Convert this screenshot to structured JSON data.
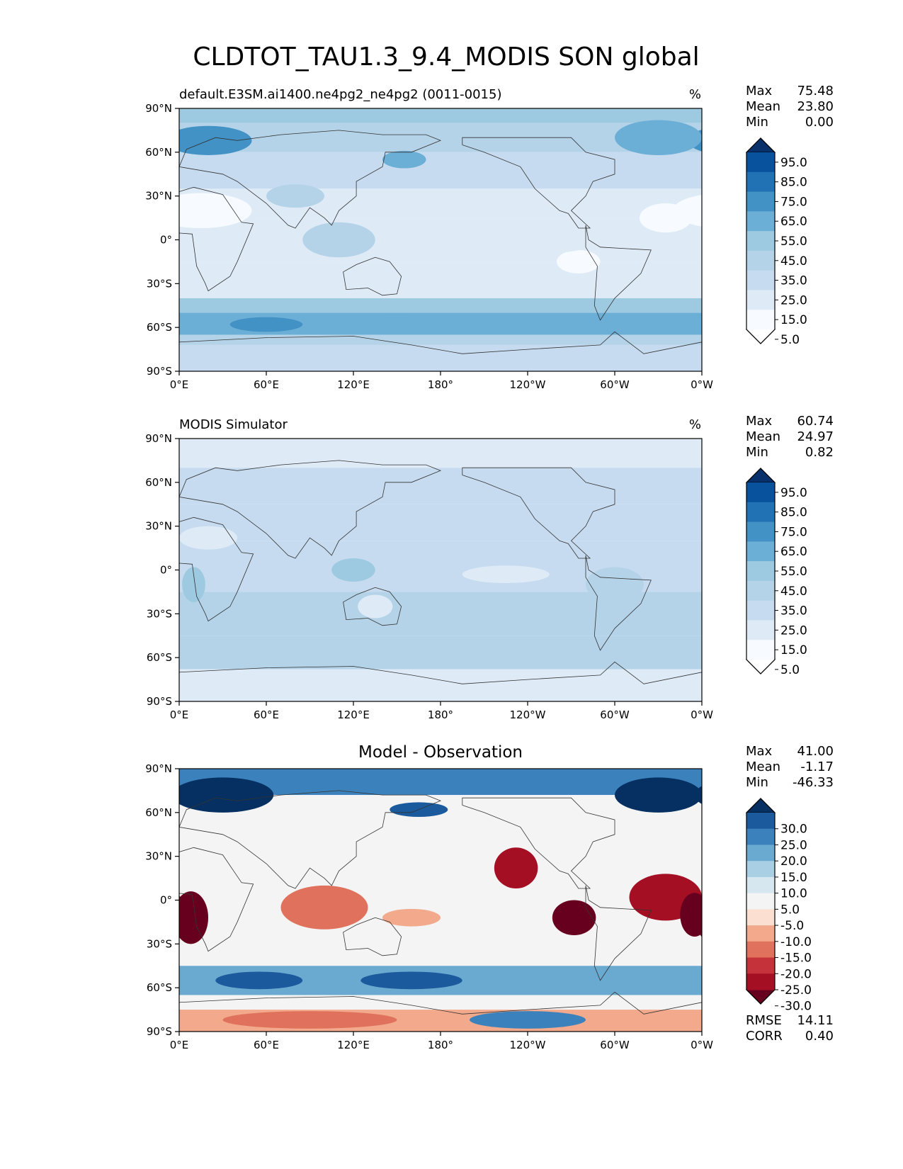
{
  "title": "CLDTOT_TAU1.3_9.4_MODIS SON global",
  "lon_ticks": [
    "0°E",
    "60°E",
    "120°E",
    "180°",
    "120°W",
    "60°W",
    "0°W"
  ],
  "lat_ticks": [
    "90°N",
    "60°N",
    "30°N",
    "0°",
    "30°S",
    "60°S",
    "90°S"
  ],
  "stat_labels": {
    "max": "Max",
    "mean": "Mean",
    "min": "Min",
    "rmse": "RMSE",
    "corr": "CORR"
  },
  "colors": {
    "abs_levels": [
      "#f7fbff",
      "#deebf7",
      "#c6dbef",
      "#b4d3e8",
      "#9ecae1",
      "#6baed6",
      "#4292c6",
      "#2171b5",
      "#08519c",
      "#08306b"
    ],
    "abs_under": "#ffffff",
    "diff_levels": [
      "#67001f",
      "#a50f24",
      "#c6323a",
      "#e0725d",
      "#f2a98c",
      "#fbe0d1",
      "#f4f4f4",
      "#d7e7f0",
      "#a8cfe4",
      "#6aaad0",
      "#3b82bc",
      "#1b5a9c",
      "#053061"
    ]
  },
  "chart_data": [
    {
      "type": "heatmap",
      "panel": "test",
      "left_title": "default.E3SM.ai1400.ne4pg2_ne4pg2 (0011-0015)",
      "units": "%",
      "stats": {
        "max": "75.48",
        "mean": "23.80",
        "min": "0.00"
      },
      "colorbar_ticks": [
        "95.0",
        "85.0",
        "75.0",
        "65.0",
        "55.0",
        "45.0",
        "35.0",
        "25.0",
        "15.0",
        "5.0"
      ],
      "xlim": [
        0,
        360
      ],
      "ylim": [
        -90,
        90
      ],
      "lat_bands": [
        {
          "lat": [
            80,
            90
          ],
          "value": 40
        },
        {
          "lat": [
            60,
            80
          ],
          "value": 38
        },
        {
          "lat": [
            35,
            60
          ],
          "value": 26
        },
        {
          "lat": [
            15,
            35
          ],
          "value": 18
        },
        {
          "lat": [
            -15,
            15
          ],
          "value": 16
        },
        {
          "lat": [
            -40,
            -15
          ],
          "value": 15
        },
        {
          "lat": [
            -50,
            -40
          ],
          "value": 40
        },
        {
          "lat": [
            -65,
            -50
          ],
          "value": 52
        },
        {
          "lat": [
            -72,
            -65
          ],
          "value": 38
        },
        {
          "lat": [
            -90,
            -72
          ],
          "value": 22
        }
      ],
      "blobs": [
        {
          "lon": 20,
          "lat": 68,
          "rlon": 30,
          "rlat": 10,
          "value": 62
        },
        {
          "lon": 330,
          "lat": 70,
          "rlon": 30,
          "rlat": 12,
          "value": 55
        },
        {
          "lon": 155,
          "lat": 55,
          "rlon": 15,
          "rlat": 6,
          "value": 50
        },
        {
          "lon": 15,
          "lat": 20,
          "rlon": 35,
          "rlat": 12,
          "value": 4
        },
        {
          "lon": 275,
          "lat": -15,
          "rlon": 15,
          "rlat": 8,
          "value": 4
        },
        {
          "lon": 335,
          "lat": 15,
          "rlon": 18,
          "rlat": 10,
          "value": 4
        },
        {
          "lon": 240,
          "lat": 0,
          "rlon": 50,
          "rlat": 10,
          "value": 12
        },
        {
          "lon": 60,
          "lat": -58,
          "rlon": 25,
          "rlat": 5,
          "value": 62
        },
        {
          "lon": 150,
          "lat": -58,
          "rlon": 40,
          "rlat": 5,
          "value": 58
        },
        {
          "lon": 110,
          "lat": 0,
          "rlon": 25,
          "rlat": 12,
          "value": 30
        },
        {
          "lon": 80,
          "lat": 30,
          "rlon": 20,
          "rlat": 8,
          "value": 32
        }
      ]
    },
    {
      "type": "heatmap",
      "panel": "reference",
      "left_title": "MODIS Simulator",
      "units": "%",
      "stats": {
        "max": "60.74",
        "mean": "24.97",
        "min": "0.82"
      },
      "colorbar_ticks": [
        "95.0",
        "85.0",
        "75.0",
        "65.0",
        "55.0",
        "45.0",
        "35.0",
        "25.0",
        "15.0",
        "5.0"
      ],
      "xlim": [
        0,
        360
      ],
      "ylim": [
        -90,
        90
      ],
      "lat_bands": [
        {
          "lat": [
            70,
            90
          ],
          "value": 18
        },
        {
          "lat": [
            45,
            70
          ],
          "value": 27
        },
        {
          "lat": [
            20,
            45
          ],
          "value": 24
        },
        {
          "lat": [
            -15,
            20
          ],
          "value": 28
        },
        {
          "lat": [
            -45,
            -15
          ],
          "value": 30
        },
        {
          "lat": [
            -68,
            -45
          ],
          "value": 36
        },
        {
          "lat": [
            -90,
            -68
          ],
          "value": 14
        }
      ],
      "blobs": [
        {
          "lon": 20,
          "lat": 22,
          "rlon": 20,
          "rlat": 8,
          "value": 12
        },
        {
          "lon": 225,
          "lat": -3,
          "rlon": 30,
          "rlat": 6,
          "value": 12
        },
        {
          "lon": 10,
          "lat": -10,
          "rlon": 8,
          "rlat": 12,
          "value": 42
        },
        {
          "lon": 120,
          "lat": 0,
          "rlon": 15,
          "rlat": 8,
          "value": 45
        },
        {
          "lon": 135,
          "lat": -25,
          "rlon": 12,
          "rlat": 8,
          "value": 14
        },
        {
          "lon": 300,
          "lat": -10,
          "rlon": 20,
          "rlat": 12,
          "value": 34
        }
      ]
    },
    {
      "type": "heatmap",
      "panel": "difference",
      "center_title": "Model - Observation",
      "stats": {
        "max": "41.00",
        "mean": "-1.17",
        "min": "-46.33"
      },
      "extra_stats": {
        "rmse": "14.11",
        "corr": "0.40"
      },
      "colorbar_ticks": [
        "30.0",
        "25.0",
        "20.0",
        "15.0",
        "10.0",
        "5.0",
        "-5.0",
        "-10.0",
        "-15.0",
        "-20.0",
        "-25.0",
        "-30.0"
      ],
      "xlim": [
        0,
        360
      ],
      "ylim": [
        -90,
        90
      ],
      "lat_bands": [
        {
          "lat": [
            72,
            90
          ],
          "value": 22
        },
        {
          "lat": [
            -45,
            72
          ],
          "value": 0
        },
        {
          "lat": [
            -65,
            -45
          ],
          "value": 18
        },
        {
          "lat": [
            -75,
            -65
          ],
          "value": 4
        },
        {
          "lat": [
            -90,
            -75
          ],
          "value": -12
        }
      ],
      "blobs": [
        {
          "lon": 30,
          "lat": 72,
          "rlon": 35,
          "rlat": 12,
          "value": 35
        },
        {
          "lon": 330,
          "lat": 72,
          "rlon": 30,
          "rlat": 12,
          "value": 35
        },
        {
          "lon": 165,
          "lat": 62,
          "rlon": 20,
          "rlat": 5,
          "value": 28
        },
        {
          "lon": 8,
          "lat": -12,
          "rlon": 12,
          "rlat": 18,
          "value": -32
        },
        {
          "lon": 100,
          "lat": -5,
          "rlon": 30,
          "rlat": 15,
          "value": -18
        },
        {
          "lon": 160,
          "lat": -12,
          "rlon": 20,
          "rlat": 6,
          "value": -12
        },
        {
          "lon": 232,
          "lat": 22,
          "rlon": 15,
          "rlat": 14,
          "value": -26
        },
        {
          "lon": 272,
          "lat": -12,
          "rlon": 15,
          "rlat": 12,
          "value": -34
        },
        {
          "lon": 335,
          "lat": 2,
          "rlon": 25,
          "rlat": 16,
          "value": -30
        },
        {
          "lon": 355,
          "lat": -10,
          "rlon": 10,
          "rlat": 15,
          "value": -34
        },
        {
          "lon": 55,
          "lat": -55,
          "rlon": 30,
          "rlat": 6,
          "value": 26
        },
        {
          "lon": 160,
          "lat": -55,
          "rlon": 35,
          "rlat": 6,
          "value": 27
        },
        {
          "lon": 240,
          "lat": -82,
          "rlon": 40,
          "rlat": 6,
          "value": 20
        },
        {
          "lon": 90,
          "lat": -82,
          "rlon": 60,
          "rlat": 6,
          "value": -18
        }
      ]
    }
  ]
}
